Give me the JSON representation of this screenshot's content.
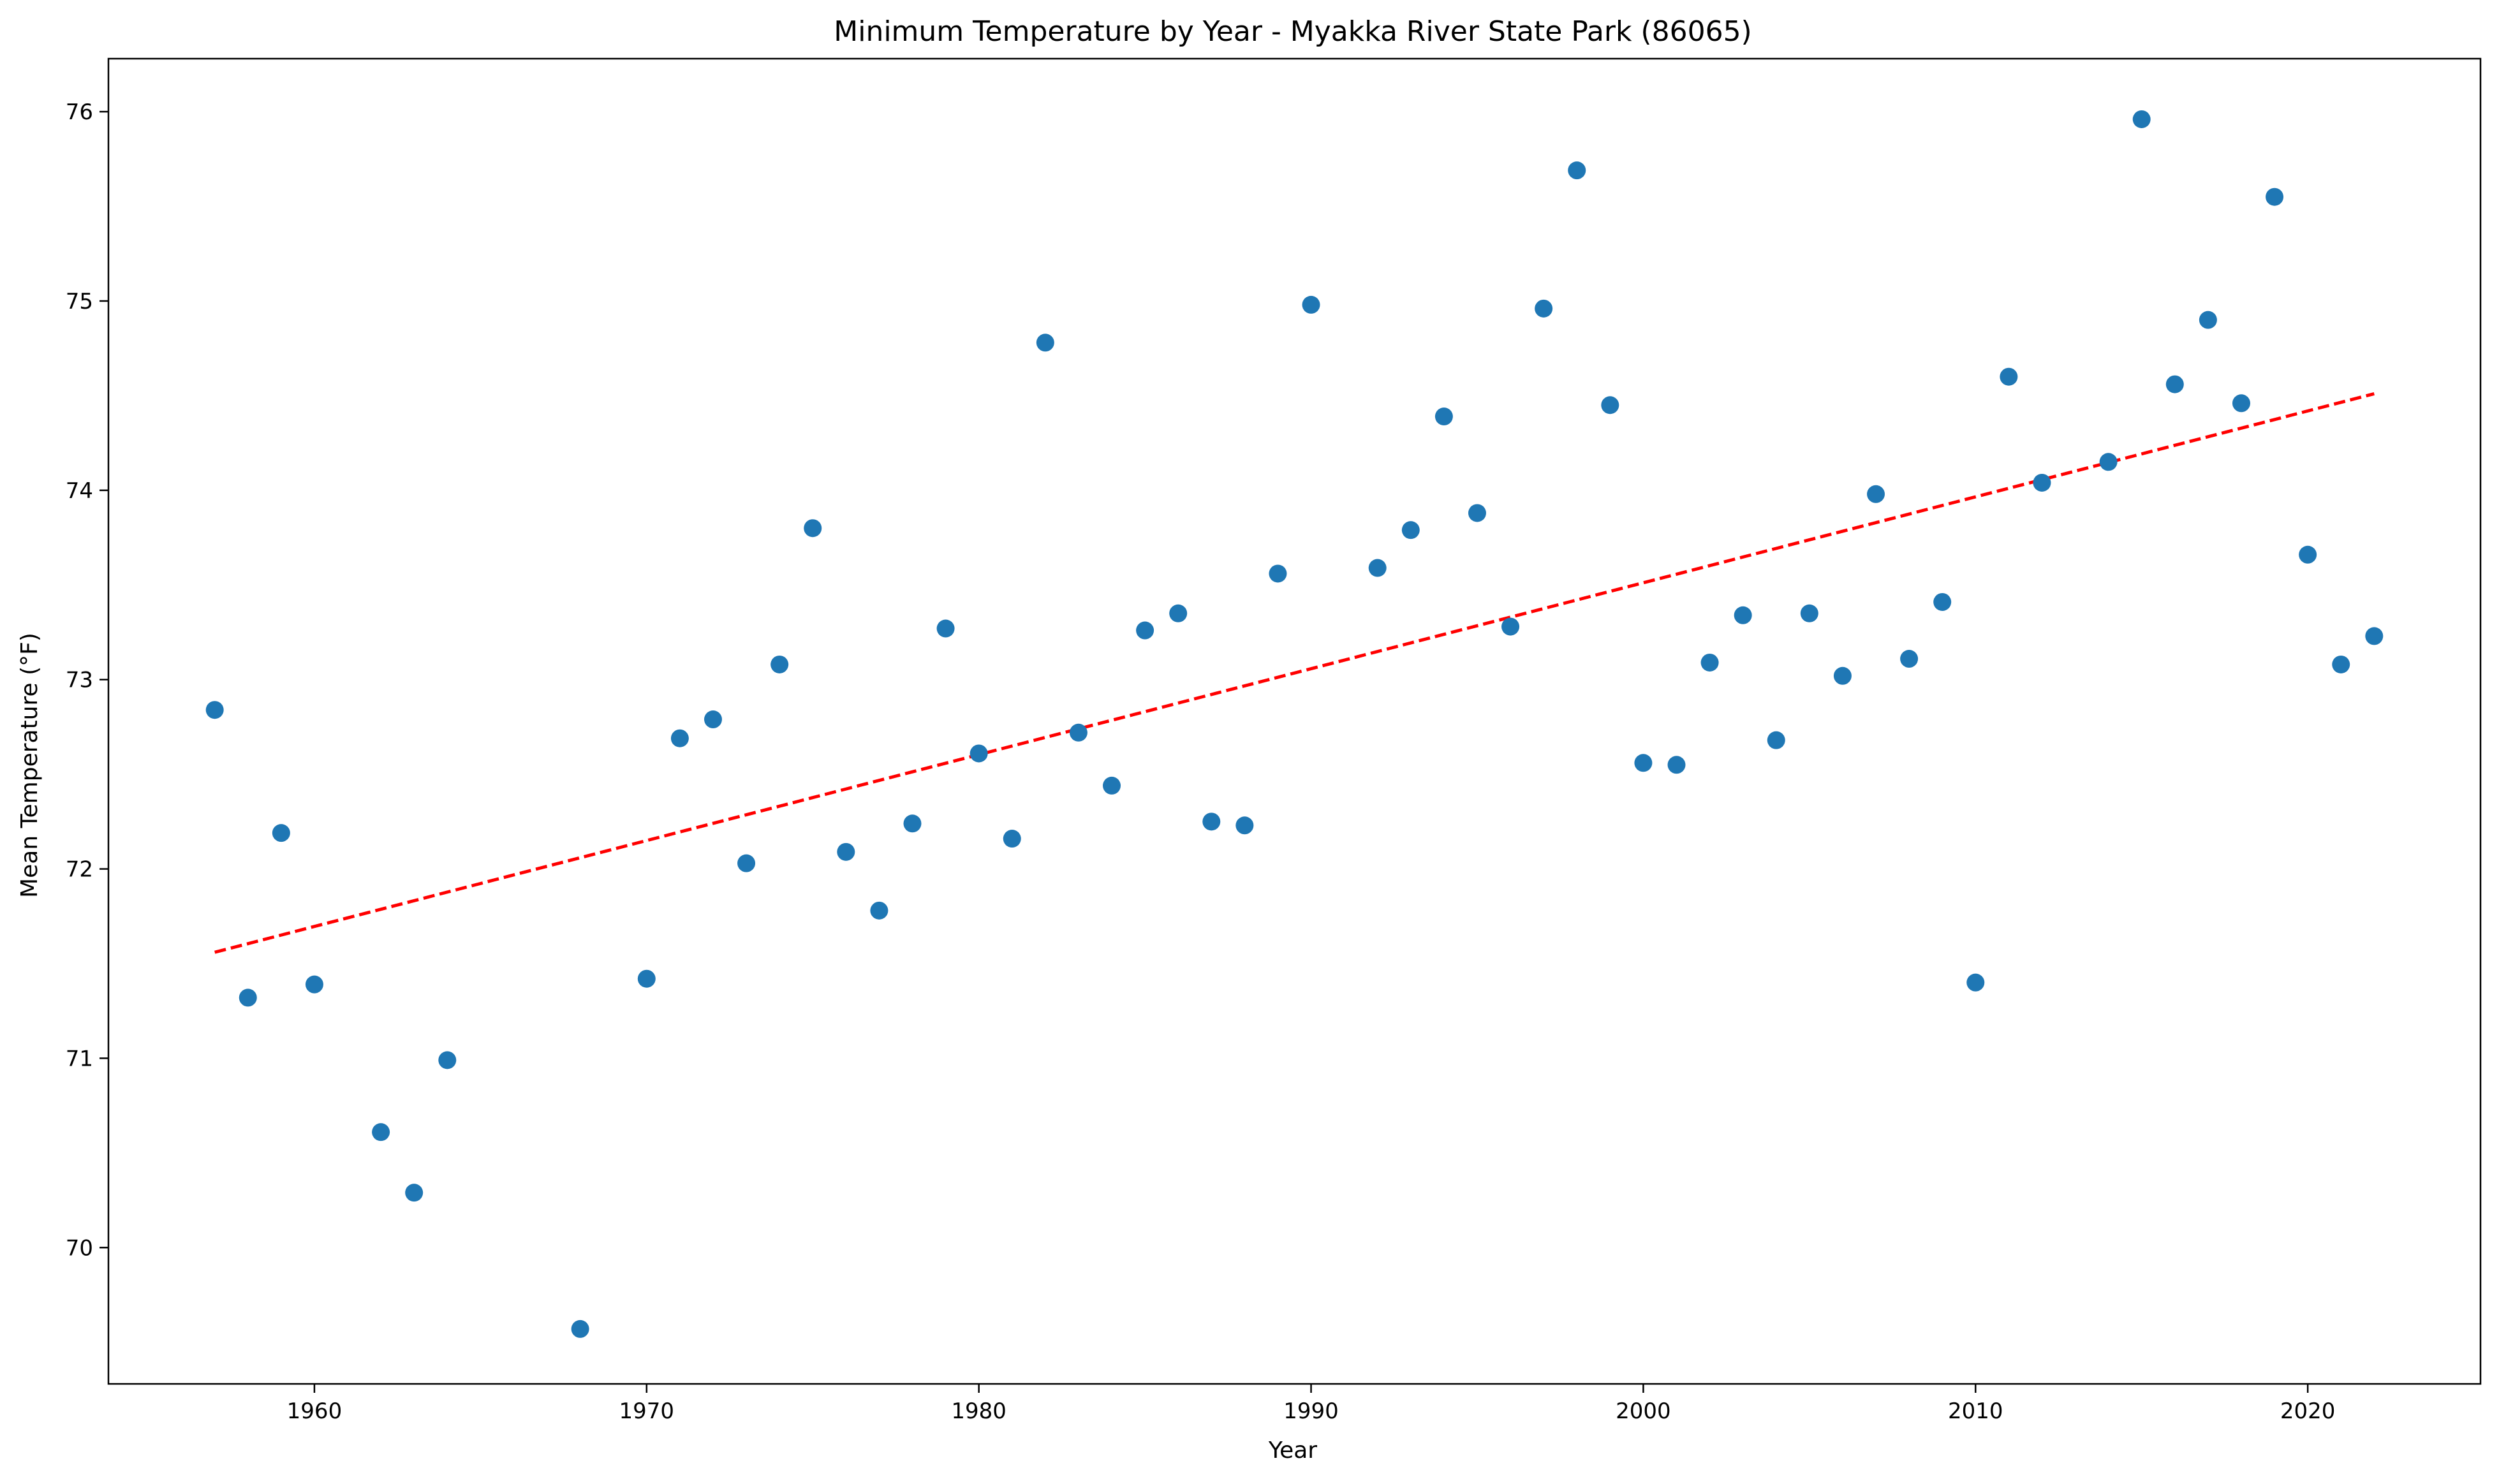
{
  "chart_data": {
    "type": "scatter",
    "title": "Minimum Temperature by Year - Myakka River State Park (86065)",
    "xlabel": "Year",
    "ylabel": "Mean Temperature (°F)",
    "xlim": [
      1953.8,
      2025.2
    ],
    "ylim": [
      69.28,
      76.28
    ],
    "xticks": [
      1960,
      1970,
      1980,
      1990,
      2000,
      2010,
      2020
    ],
    "yticks": [
      70,
      71,
      72,
      73,
      74,
      75,
      76
    ],
    "grid": false,
    "point_color": "#1f77b4",
    "trend_color": "#ff0000",
    "series": [
      {
        "x": [
          1957,
          1958,
          1959,
          1960,
          1962,
          1963,
          1964,
          1968,
          1970,
          1971,
          1972,
          1973,
          1974,
          1975,
          1976,
          1977,
          1978,
          1979,
          1980,
          1981,
          1982,
          1983,
          1984,
          1985,
          1986,
          1987,
          1988,
          1989,
          1990,
          1992,
          1993,
          1994,
          1995,
          1996,
          1997,
          1998,
          1999,
          2000,
          2001,
          2002,
          2003,
          2004,
          2005,
          2006,
          2007,
          2008,
          2009,
          2010,
          2011,
          2012,
          2014,
          2015,
          2016,
          2017,
          2018,
          2019,
          2020,
          2021,
          2022
        ],
        "y": [
          72.84,
          71.32,
          72.19,
          71.39,
          70.61,
          70.29,
          70.99,
          69.57,
          71.42,
          72.69,
          72.79,
          72.03,
          73.08,
          73.8,
          72.09,
          71.78,
          72.24,
          73.27,
          72.61,
          72.16,
          74.78,
          72.72,
          72.44,
          73.26,
          73.35,
          72.25,
          72.23,
          73.56,
          74.98,
          73.59,
          73.79,
          74.39,
          73.88,
          73.28,
          74.96,
          75.69,
          74.45,
          72.56,
          72.55,
          73.09,
          73.34,
          72.68,
          73.35,
          73.02,
          73.98,
          73.11,
          73.41,
          71.4,
          74.6,
          74.04,
          74.15,
          75.96,
          74.56,
          74.9,
          74.46,
          75.55,
          73.66,
          73.08,
          73.23
        ]
      }
    ],
    "trendline": {
      "x": [
        1957,
        2022
      ],
      "y": [
        71.56,
        74.51
      ],
      "style": "dashed"
    }
  }
}
